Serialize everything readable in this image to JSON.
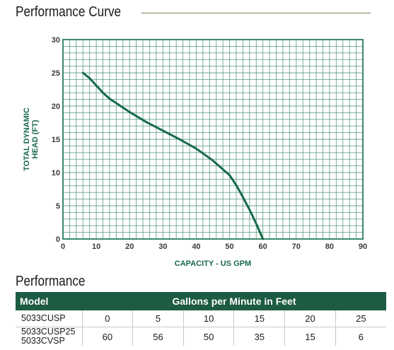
{
  "header": {
    "curve_title": "Performance Curve",
    "performance_title": "Performance"
  },
  "colors": {
    "curve": "#17694a",
    "grid": "#3c8a6a",
    "axis_title": "#17694a",
    "table_header": "#1d5b43",
    "title_rule": "#8c7f52"
  },
  "chart_data": {
    "type": "line",
    "title": "",
    "xlabel": "CAPACITY - US GPM",
    "ylabel_lines": [
      "TOTAL DYNAMIC",
      "HEAD (FT)"
    ],
    "xlim": [
      0,
      90
    ],
    "ylim": [
      0,
      30
    ],
    "x_ticks": [
      0,
      10,
      20,
      30,
      40,
      50,
      60,
      70,
      80,
      90
    ],
    "y_ticks": [
      0,
      5,
      10,
      15,
      20,
      25,
      30
    ],
    "grid": true,
    "series": [
      {
        "x": [
          6,
          8,
          10,
          12,
          14,
          17,
          20,
          25,
          30,
          35,
          40,
          45,
          50,
          52,
          54,
          56,
          58,
          60
        ],
        "y": [
          25,
          24.2,
          23.1,
          22,
          21.1,
          20.1,
          19.1,
          17.6,
          16.3,
          15,
          13.6,
          11.8,
          9.6,
          8.1,
          6.3,
          4.4,
          2.3,
          0
        ]
      }
    ]
  },
  "table": {
    "headers": {
      "model": "Model",
      "gpm": "Gallons per Minute in Feet"
    },
    "models": [
      "5033CUSP",
      "5033CUSP25",
      "5033CVSP"
    ],
    "gpm_values": [
      "0",
      "5",
      "10",
      "15",
      "20",
      "25"
    ],
    "head_values": [
      "60",
      "56",
      "50",
      "35",
      "15",
      "6"
    ]
  }
}
